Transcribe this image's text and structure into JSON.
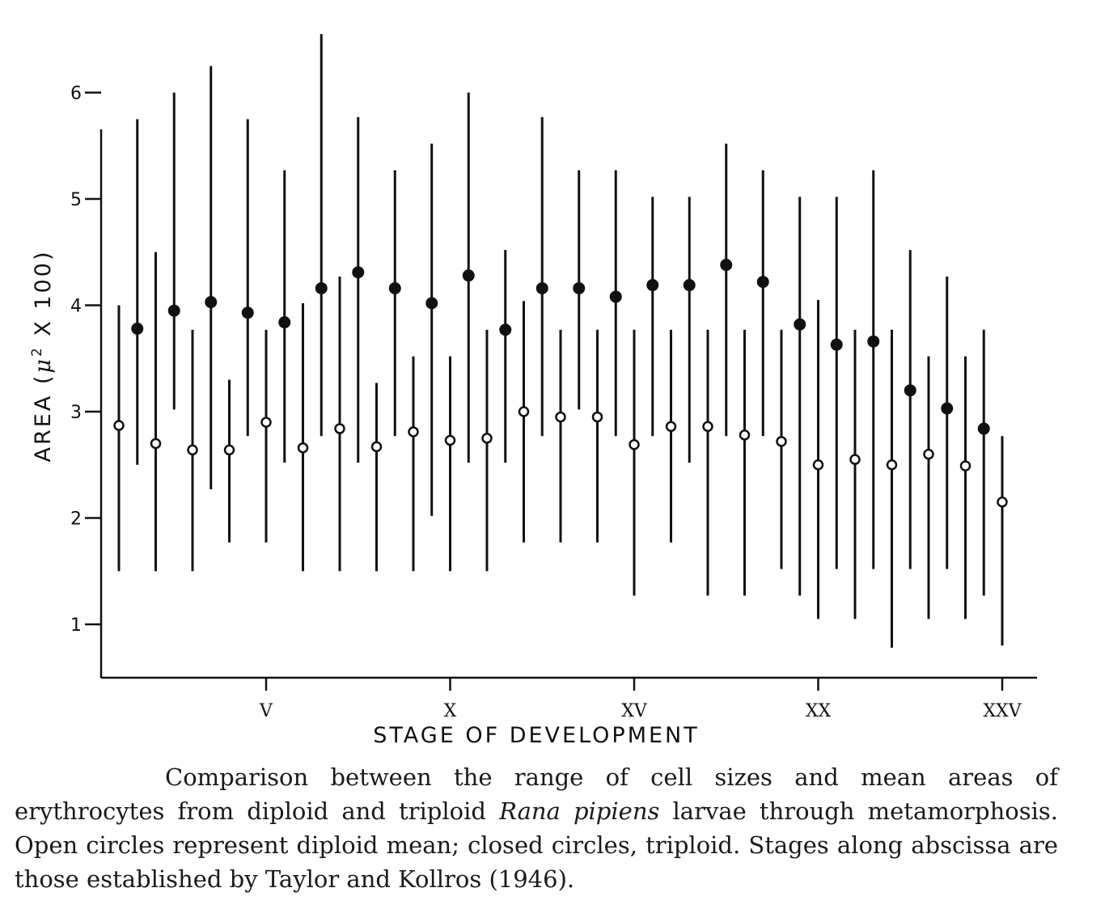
{
  "chart_data": {
    "type": "scatter",
    "xlabel": "STAGE OF DEVELOPMENT",
    "ylabel": "AREA (μ² X 100)",
    "ylabel_parts": {
      "prefix": "AREA (",
      "mu": "μ",
      "sup": "2",
      "suffix": " X 100)"
    },
    "y_ticks": [
      1,
      2,
      3,
      4,
      5,
      6
    ],
    "x_ticks": [
      {
        "stage": 5,
        "label": "V"
      },
      {
        "stage": 10,
        "label": "X"
      },
      {
        "stage": 15,
        "label": "XV"
      },
      {
        "stage": 20,
        "label": "XX"
      },
      {
        "stage": 25,
        "label": "XXV"
      }
    ],
    "xlim": [
      0.5,
      26.5
    ],
    "ylim": [
      0.5,
      6.6
    ],
    "series": [
      {
        "marker": "open",
        "points": [
          {
            "stage": 1,
            "mean": 2.87,
            "min": 1.5,
            "max": 4.0
          },
          {
            "stage": 2,
            "mean": 2.7,
            "min": 1.5,
            "max": 4.5
          },
          {
            "stage": 3,
            "mean": 2.64,
            "min": 1.5,
            "max": 3.77
          },
          {
            "stage": 4,
            "mean": 2.64,
            "min": 1.77,
            "max": 3.3
          },
          {
            "stage": 5,
            "mean": 2.9,
            "min": 1.77,
            "max": 3.77
          },
          {
            "stage": 6,
            "mean": 2.66,
            "min": 1.5,
            "max": 4.02
          },
          {
            "stage": 7,
            "mean": 2.84,
            "min": 1.5,
            "max": 4.27
          },
          {
            "stage": 8,
            "mean": 2.67,
            "min": 1.5,
            "max": 3.27
          },
          {
            "stage": 9,
            "mean": 2.81,
            "min": 1.5,
            "max": 3.52
          },
          {
            "stage": 10,
            "mean": 2.73,
            "min": 1.5,
            "max": 3.52
          },
          {
            "stage": 11,
            "mean": 2.75,
            "min": 1.5,
            "max": 3.77
          },
          {
            "stage": 12,
            "mean": 3.0,
            "min": 1.77,
            "max": 4.04
          },
          {
            "stage": 13,
            "mean": 2.95,
            "min": 1.77,
            "max": 3.77
          },
          {
            "stage": 14,
            "mean": 2.95,
            "min": 1.77,
            "max": 3.77
          },
          {
            "stage": 15,
            "mean": 2.69,
            "min": 1.27,
            "max": 3.77
          },
          {
            "stage": 16,
            "mean": 2.86,
            "min": 1.77,
            "max": 3.77
          },
          {
            "stage": 17,
            "mean": 2.86,
            "min": 1.27,
            "max": 3.77
          },
          {
            "stage": 18,
            "mean": 2.78,
            "min": 1.27,
            "max": 3.77
          },
          {
            "stage": 19,
            "mean": 2.72,
            "min": 1.52,
            "max": 3.77
          },
          {
            "stage": 20,
            "mean": 2.5,
            "min": 1.05,
            "max": 4.05
          },
          {
            "stage": 21,
            "mean": 2.55,
            "min": 1.05,
            "max": 3.77
          },
          {
            "stage": 22,
            "mean": 2.5,
            "min": 0.78,
            "max": 3.77
          },
          {
            "stage": 23,
            "mean": 2.6,
            "min": 1.05,
            "max": 3.52
          },
          {
            "stage": 24,
            "mean": 2.49,
            "min": 1.05,
            "max": 3.52
          },
          {
            "stage": 25,
            "mean": 2.15,
            "min": 0.8,
            "max": 2.77
          }
        ]
      },
      {
        "marker": "closed",
        "points": [
          {
            "stage": 1.5,
            "mean": 3.78,
            "min": 2.5,
            "max": 5.75
          },
          {
            "stage": 2.5,
            "mean": 3.95,
            "min": 3.02,
            "max": 6.0
          },
          {
            "stage": 3.5,
            "mean": 4.03,
            "min": 2.27,
            "max": 6.25
          },
          {
            "stage": 4.5,
            "mean": 3.93,
            "min": 2.77,
            "max": 5.75
          },
          {
            "stage": 5.5,
            "mean": 3.84,
            "min": 2.52,
            "max": 5.27
          },
          {
            "stage": 6.5,
            "mean": 4.16,
            "min": 2.77,
            "max": 6.55
          },
          {
            "stage": 7.5,
            "mean": 4.31,
            "min": 2.52,
            "max": 5.77
          },
          {
            "stage": 8.5,
            "mean": 4.16,
            "min": 2.77,
            "max": 5.27
          },
          {
            "stage": 9.5,
            "mean": 4.02,
            "min": 2.02,
            "max": 5.52
          },
          {
            "stage": 10.5,
            "mean": 4.28,
            "min": 2.52,
            "max": 6.0
          },
          {
            "stage": 11.5,
            "mean": 3.77,
            "min": 2.52,
            "max": 4.52
          },
          {
            "stage": 12.5,
            "mean": 4.16,
            "min": 2.77,
            "max": 5.77
          },
          {
            "stage": 13.5,
            "mean": 4.16,
            "min": 3.02,
            "max": 5.27
          },
          {
            "stage": 14.5,
            "mean": 4.08,
            "min": 2.77,
            "max": 5.27
          },
          {
            "stage": 15.5,
            "mean": 4.19,
            "min": 2.77,
            "max": 5.02
          },
          {
            "stage": 16.5,
            "mean": 4.19,
            "min": 2.52,
            "max": 5.02
          },
          {
            "stage": 17.5,
            "mean": 4.38,
            "min": 2.77,
            "max": 5.52
          },
          {
            "stage": 18.5,
            "mean": 4.22,
            "min": 2.77,
            "max": 5.27
          },
          {
            "stage": 19.5,
            "mean": 3.82,
            "min": 1.27,
            "max": 5.02
          },
          {
            "stage": 20.5,
            "mean": 3.63,
            "min": 1.52,
            "max": 5.02
          },
          {
            "stage": 21.5,
            "mean": 3.66,
            "min": 1.52,
            "max": 5.27
          },
          {
            "stage": 22.5,
            "mean": 3.2,
            "min": 1.52,
            "max": 4.52
          },
          {
            "stage": 23.5,
            "mean": 3.03,
            "min": 1.52,
            "max": 4.27
          },
          {
            "stage": 24.5,
            "mean": 2.84,
            "min": 1.27,
            "max": 3.77
          }
        ]
      }
    ]
  },
  "caption": {
    "part1": "Comparison between the range of cell sizes and mean areas of erythrocytes from diploid and triploid ",
    "species": "Rana pipiens",
    "part2": " larvae through metamorphosis. Open circles represent diploid mean; closed circles, triploid. Stages along abscissa are those established by Taylor and Kollros (1946)."
  }
}
